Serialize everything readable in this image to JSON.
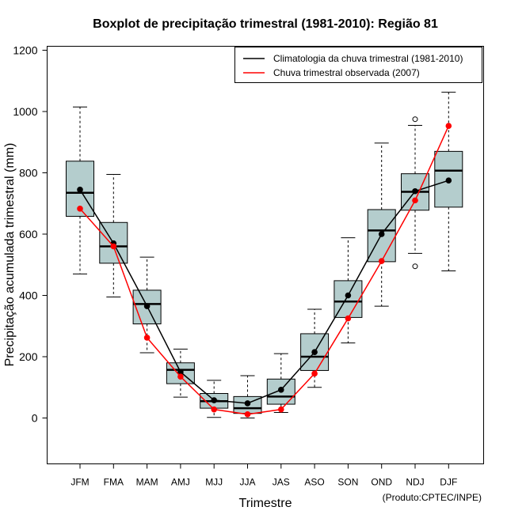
{
  "chart_data": {
    "type": "boxplot",
    "title": "Boxplot de precipitação trimestral (1981-2010): Região 81",
    "xlabel": "Trimestre",
    "ylabel": "Precipitação acumulada trimestral (mm)",
    "ylim": [
      -150,
      1250
    ],
    "yticks": [
      0,
      200,
      400,
      600,
      800,
      1000,
      1200
    ],
    "credit": "(Produto:CPTEC/INPE)",
    "categories": [
      "JFM",
      "FMA",
      "MAM",
      "AMJ",
      "MJJ",
      "JJA",
      "JAS",
      "ASO",
      "SON",
      "OND",
      "NDJ",
      "DJF"
    ],
    "box_color": "#b4cdcd",
    "boxes": [
      {
        "whisker_low": 470,
        "q1": 658,
        "median": 735,
        "q3": 838,
        "whisker_high": 1015,
        "outliers": []
      },
      {
        "whisker_low": 395,
        "q1": 505,
        "median": 560,
        "q3": 638,
        "whisker_high": 795,
        "outliers": []
      },
      {
        "whisker_low": 213,
        "q1": 307,
        "median": 372,
        "q3": 417,
        "whisker_high": 525,
        "outliers": []
      },
      {
        "whisker_low": 68,
        "q1": 112,
        "median": 157,
        "q3": 180,
        "whisker_high": 225,
        "outliers": []
      },
      {
        "whisker_low": 2,
        "q1": 32,
        "median": 55,
        "q3": 80,
        "whisker_high": 123,
        "outliers": []
      },
      {
        "whisker_low": 0,
        "q1": 15,
        "median": 32,
        "q3": 70,
        "whisker_high": 138,
        "outliers": []
      },
      {
        "whisker_low": 18,
        "q1": 45,
        "median": 70,
        "q3": 127,
        "whisker_high": 210,
        "outliers": []
      },
      {
        "whisker_low": 100,
        "q1": 155,
        "median": 200,
        "q3": 275,
        "whisker_high": 355,
        "outliers": []
      },
      {
        "whisker_low": 245,
        "q1": 328,
        "median": 380,
        "q3": 448,
        "whisker_high": 588,
        "outliers": []
      },
      {
        "whisker_low": 365,
        "q1": 510,
        "median": 612,
        "q3": 680,
        "whisker_high": 897,
        "outliers": []
      },
      {
        "whisker_low": 537,
        "q1": 678,
        "median": 738,
        "q3": 797,
        "whisker_high": 955,
        "outliers": [
          495,
          975
        ]
      },
      {
        "whisker_low": 480,
        "q1": 688,
        "median": 807,
        "q3": 870,
        "whisker_high": 1063,
        "outliers": []
      }
    ],
    "series": [
      {
        "name": "Climatologia da chuva trimestral (1981-2010)",
        "color": "#000000",
        "values": [
          745,
          570,
          365,
          150,
          58,
          48,
          92,
          215,
          400,
          600,
          740,
          775
        ]
      },
      {
        "name": "Chuva trimestral observada (2007)",
        "color": "#ff0000",
        "values": [
          683,
          560,
          262,
          135,
          28,
          12,
          28,
          145,
          325,
          512,
          710,
          953
        ]
      }
    ]
  }
}
